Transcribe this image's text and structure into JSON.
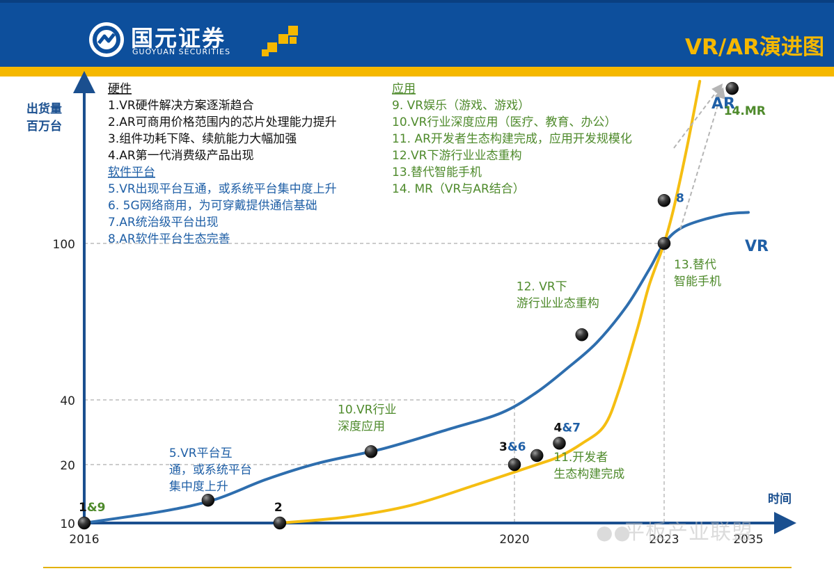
{
  "header": {
    "company_name": "国元证券",
    "company_name_en": "GUOYUAN SECURITIES",
    "page_title": "VR/AR演进图"
  },
  "watermark": {
    "icon": "wechat-icon",
    "text": "平板产业联盟"
  },
  "colors": {
    "header_blue": "#0d4f9c",
    "header_stripe": "#f5b800",
    "vr_line": "#2e6eae",
    "ar_line": "#f5be12",
    "green_text": "#4e8a2b",
    "blue_text": "#1f5fa6",
    "axis": "#1a4f8f"
  },
  "chart_data": {
    "type": "line",
    "ylabel_lines": [
      "出货量",
      "百万台"
    ],
    "xlabel": "时间",
    "y_ticks": [
      10,
      20,
      40,
      100
    ],
    "x_ticks": [
      "2016",
      "2020",
      "2023",
      "2035"
    ],
    "series": [
      {
        "name": "VR",
        "points": [
          [
            0,
            10
          ],
          [
            0.6,
            12
          ],
          [
            1.0,
            14
          ],
          [
            1.4,
            17.5
          ],
          [
            1.8,
            20.5
          ],
          [
            2.3,
            25
          ],
          [
            2.8,
            31
          ],
          [
            3.2,
            36
          ],
          [
            3.6,
            43
          ],
          [
            4.0,
            52
          ],
          [
            4.4,
            62
          ],
          [
            4.8,
            76
          ],
          [
            5.1,
            90
          ],
          [
            5.3,
            100
          ],
          [
            5.6,
            107
          ],
          [
            6.2,
            112
          ],
          [
            6.6,
            113
          ]
        ]
      },
      {
        "name": "AR",
        "points": [
          [
            1.5,
            10
          ],
          [
            2.0,
            11
          ],
          [
            2.5,
            13
          ],
          [
            3.0,
            16.5
          ],
          [
            3.6,
            20
          ],
          [
            3.9,
            22.5
          ],
          [
            4.2,
            26.5
          ],
          [
            4.5,
            32
          ],
          [
            4.7,
            44
          ],
          [
            4.95,
            68
          ],
          [
            5.1,
            84
          ],
          [
            5.3,
            100
          ],
          [
            5.45,
            115
          ],
          [
            5.65,
            140
          ],
          [
            5.85,
            168
          ]
        ]
      }
    ],
    "milestones": [
      {
        "series": "VR",
        "x": 0,
        "y": 10,
        "label_parts": [
          {
            "text": "1",
            "color": "#111111"
          },
          {
            "text": "&9",
            "color": "#4e8a2b"
          }
        ],
        "label_anchor": "above"
      },
      {
        "series": "VR",
        "x": 0.95,
        "y": 13.9,
        "label": "5.VR平台互通，或系统平台集中度上升"
      },
      {
        "series": "AR",
        "x": 1.5,
        "y": 10,
        "label_parts": [
          {
            "text": "2",
            "color": "#111111"
          }
        ],
        "label_anchor": "above"
      },
      {
        "series": "VR",
        "x": 2.2,
        "y": 24,
        "label": "10.VR行业深度应用"
      },
      {
        "series": "AR",
        "x": 3.3,
        "y": 20,
        "label_parts": [
          {
            "text": "3",
            "color": "#111111"
          },
          {
            "text": "&6",
            "color": "#1f5fa6"
          }
        ],
        "label_anchor": "above-left"
      },
      {
        "series": "AR",
        "x": 3.6,
        "y": 22.8,
        "label": "11.开发者生态构建完成"
      },
      {
        "series": "AR",
        "x": 3.9,
        "y": 26.6,
        "label_parts": [
          {
            "text": "4",
            "color": "#111111"
          },
          {
            "text": "&7",
            "color": "#1f5fa6"
          }
        ],
        "label_anchor": "above"
      },
      {
        "series": "VR",
        "x": 4.2,
        "y": 65,
        "label": "12. VR下游行业业态重构"
      },
      {
        "series": "VR",
        "x": 5.3,
        "y": 100,
        "label": "13.替代智能手机"
      },
      {
        "series": "AR",
        "x": 5.3,
        "y": 118,
        "label_parts": [
          {
            "text": "8",
            "color": "#1f5fa6"
          }
        ],
        "label_anchor": "right"
      },
      {
        "series": "MR",
        "x": 6.35,
        "y": 165,
        "label": "14.MR"
      }
    ],
    "hardware_header": "硬件",
    "hardware_items": [
      "1.VR硬件解决方案逐渐趋合",
      "2.AR可商用价格范围内的芯片处理能力提升",
      "3.组件功耗下降、续航能力大幅加强",
      "4.AR第一代消费级产品出现"
    ],
    "software_header": "软件平台",
    "software_items": [
      "5.VR出现平台互通，或系统平台集中度上升",
      "6. 5G网络商用，为可穿戴提供通信基础",
      "7.AR统治级平台出现",
      "8.AR软件平台生态完善"
    ],
    "application_header": "应用",
    "application_items": [
      "9. VR娱乐（游戏、游戏）",
      "10.VR行业深度应用（医疗、教育、办公）",
      "11. AR开发者生态构建完成，应用开发规模化",
      "12.VR下游行业业态重构",
      "13.替代智能手机",
      "14. MR（VR与AR结合）"
    ],
    "series_labels": {
      "ar": "AR",
      "vr": "VR"
    }
  }
}
